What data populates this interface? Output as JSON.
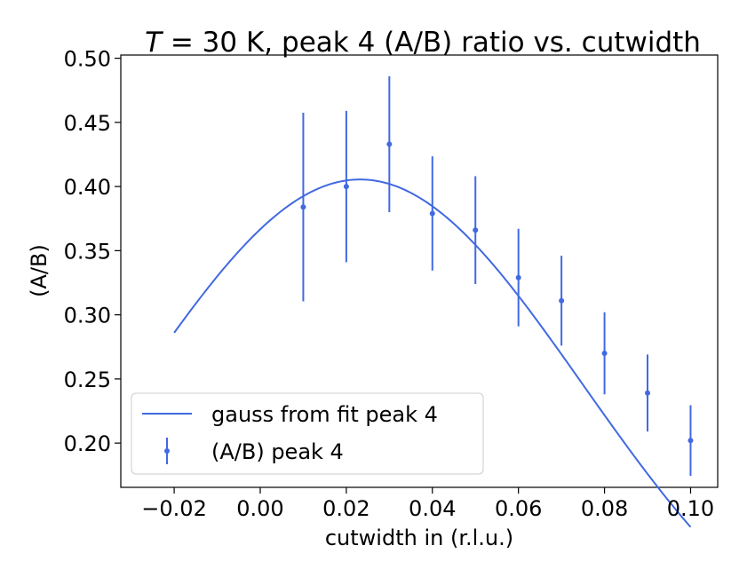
{
  "chart_data": {
    "type": "scatter",
    "title_prefix": "T",
    "title_rest": " = 30 K, peak 4 (A/B) ratio vs. cutwidth",
    "xlabel": "cutwidth in (r.l.u.)",
    "ylabel": "(A/B)",
    "xlim": [
      -0.0324,
      0.1063
    ],
    "ylim": [
      0.1655,
      0.5025
    ],
    "xticks": [
      -0.02,
      0.0,
      0.02,
      0.04,
      0.06,
      0.08,
      0.1
    ],
    "xtick_labels": [
      "−0.02",
      "0.00",
      "0.02",
      "0.04",
      "0.06",
      "0.08",
      "0.10"
    ],
    "yticks": [
      0.2,
      0.25,
      0.3,
      0.35,
      0.4,
      0.45,
      0.5
    ],
    "ytick_labels": [
      "0.20",
      "0.25",
      "0.30",
      "0.35",
      "0.40",
      "0.45",
      "0.50"
    ],
    "color": "#4169e1",
    "series": [
      {
        "name": "gauss from fit peak 4",
        "kind": "line",
        "model": "gaussian",
        "params": {
          "amplitude": 0.4055,
          "center": 0.0232,
          "sigma": 0.0517
        },
        "x_range": [
          -0.02,
          0.1
        ]
      },
      {
        "name": "(A/B) peak 4",
        "kind": "errorbar",
        "x": [
          0.01,
          0.02,
          0.03,
          0.04,
          0.05,
          0.06,
          0.07,
          0.08,
          0.09,
          0.1
        ],
        "y": [
          0.384,
          0.4,
          0.433,
          0.379,
          0.366,
          0.329,
          0.311,
          0.27,
          0.239,
          0.202
        ],
        "yerr": [
          0.0735,
          0.059,
          0.053,
          0.0445,
          0.042,
          0.038,
          0.035,
          0.032,
          0.03,
          0.0275
        ]
      }
    ],
    "legend": {
      "position": "lower-left",
      "entries": [
        "gauss from fit peak 4",
        "(A/B) peak 4"
      ]
    }
  }
}
